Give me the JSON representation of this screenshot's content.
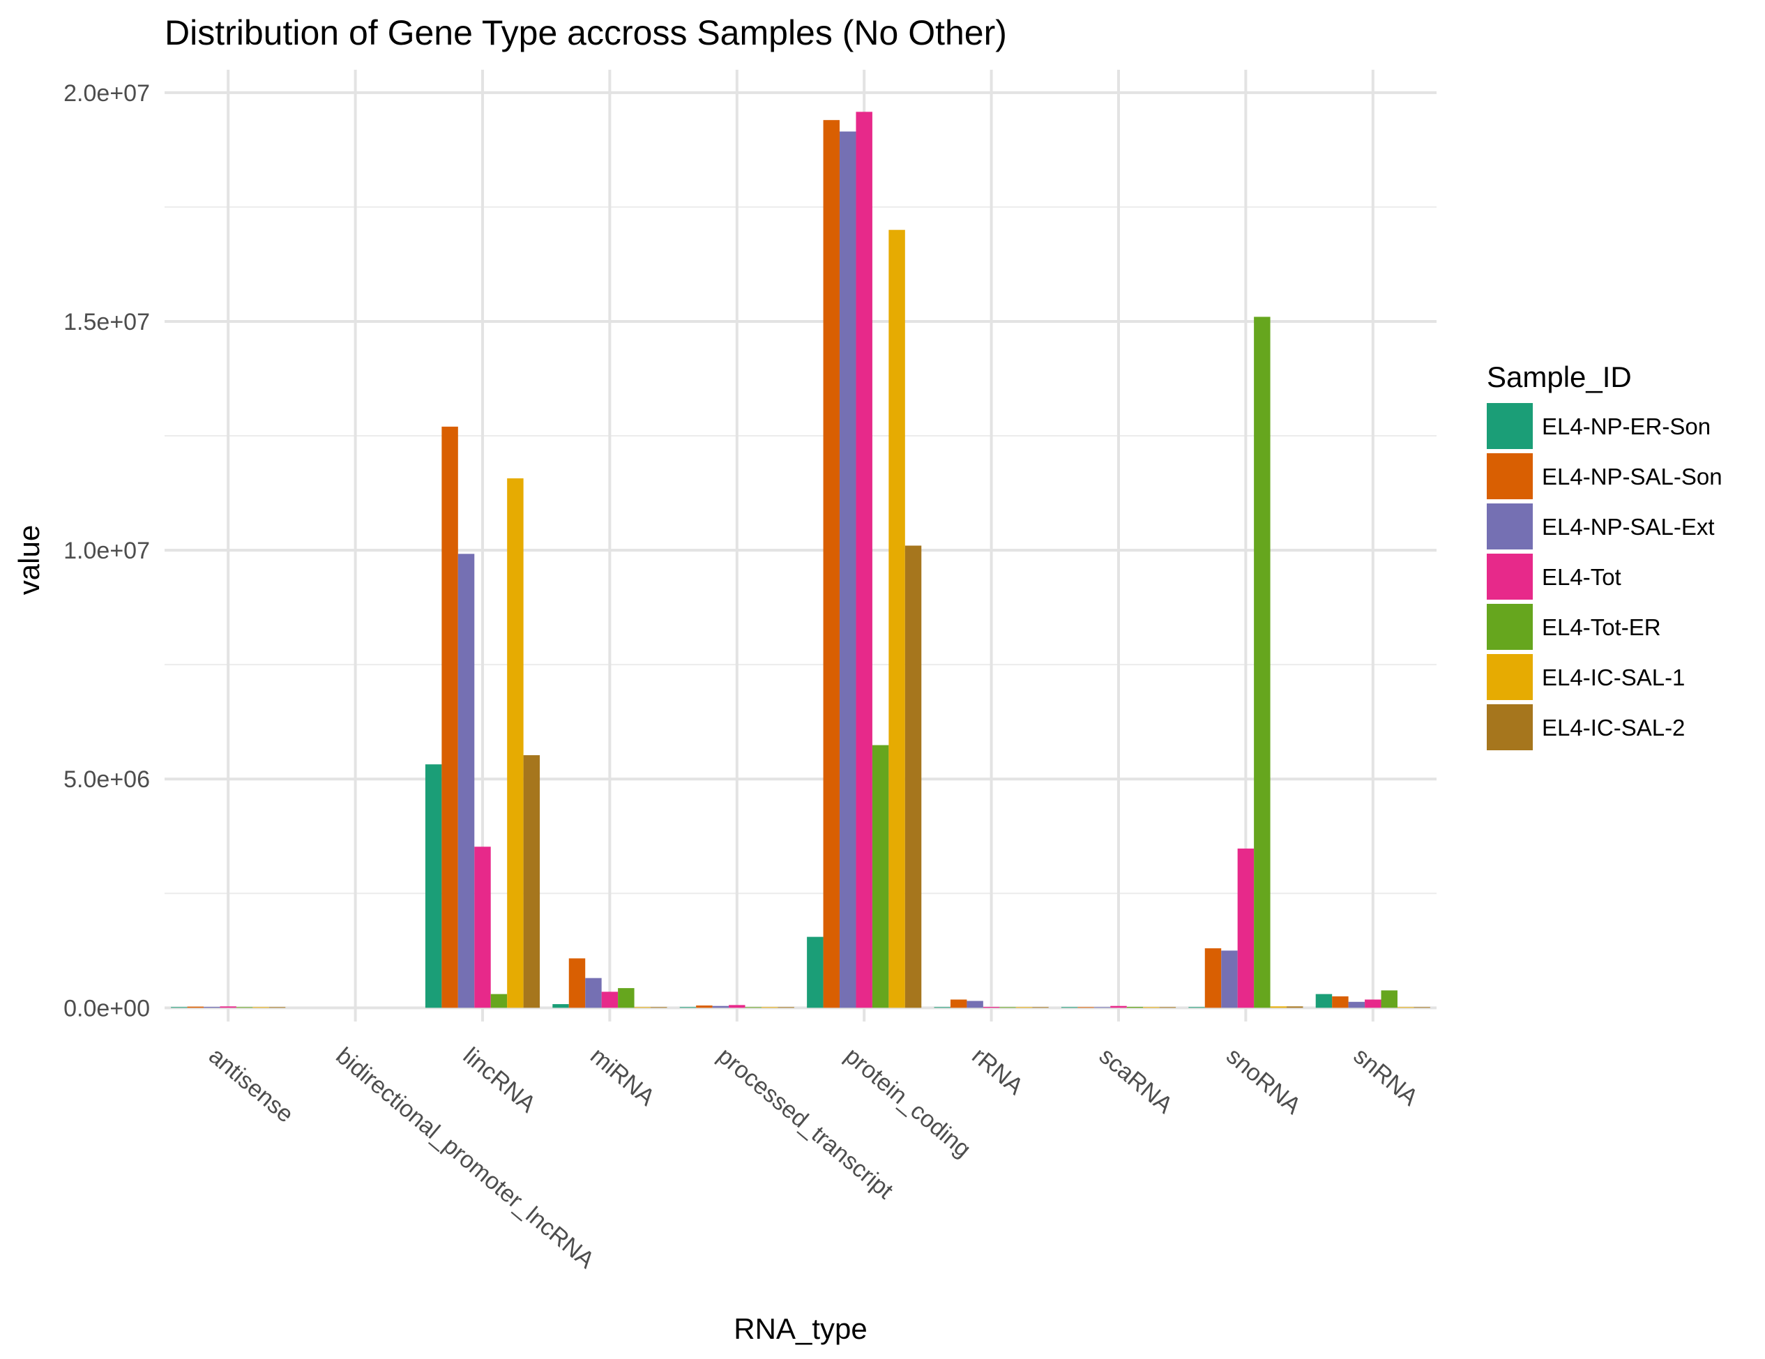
{
  "chart_data": {
    "type": "bar",
    "title": "Distribution of Gene Type accross Samples (No Other)",
    "xlabel": "RNA_type",
    "ylabel": "value",
    "ylim": [
      -300000,
      20500000
    ],
    "yticks": [
      0,
      5000000,
      10000000,
      15000000,
      20000000
    ],
    "ytick_labels": [
      "0.0e+00",
      "5.0e+06",
      "1.0e+07",
      "1.5e+07",
      "2.0e+07"
    ],
    "grid": true,
    "legend_title": "Sample_ID",
    "legend_position": "right",
    "categories": [
      "antisense",
      "bidirectional_promoter_lncRNA",
      "lincRNA",
      "miRNA",
      "processed_transcript",
      "protein_coding",
      "rRNA",
      "scaRNA",
      "snoRNA",
      "snRNA"
    ],
    "series": [
      {
        "name": "EL4-NP-ER-Son",
        "color": "#1b9e77",
        "values": [
          5000,
          0,
          5320000,
          80000,
          5000,
          1550000,
          5000,
          5000,
          10000,
          300000
        ]
      },
      {
        "name": "EL4-NP-SAL-Son",
        "color": "#d95f02",
        "values": [
          25000,
          0,
          12700000,
          1080000,
          50000,
          19400000,
          180000,
          15000,
          1300000,
          250000
        ]
      },
      {
        "name": "EL4-NP-SAL-Ext",
        "color": "#7570b3",
        "values": [
          20000,
          0,
          9920000,
          650000,
          40000,
          19150000,
          150000,
          10000,
          1250000,
          130000
        ]
      },
      {
        "name": "EL4-Tot",
        "color": "#e7298a",
        "values": [
          30000,
          0,
          3520000,
          350000,
          60000,
          19580000,
          20000,
          40000,
          3480000,
          180000
        ]
      },
      {
        "name": "EL4-Tot-ER",
        "color": "#66a61e",
        "values": [
          3000,
          0,
          300000,
          430000,
          5000,
          5740000,
          5000,
          20000,
          15100000,
          380000
        ]
      },
      {
        "name": "EL4-IC-SAL-1",
        "color": "#e6ab02",
        "values": [
          5000,
          0,
          11570000,
          5000,
          15000,
          17000000,
          10000,
          5000,
          30000,
          15000
        ]
      },
      {
        "name": "EL4-IC-SAL-2",
        "color": "#a6761d",
        "values": [
          3000,
          0,
          5520000,
          5000,
          15000,
          10100000,
          5000,
          5000,
          30000,
          15000
        ]
      }
    ]
  }
}
